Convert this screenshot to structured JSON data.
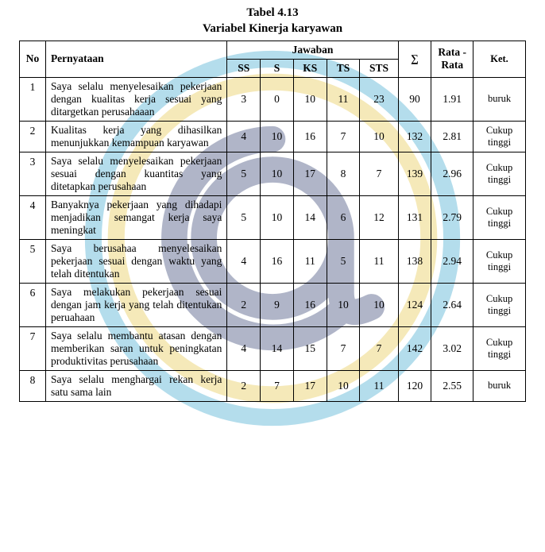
{
  "caption": {
    "line1": "Tabel 4.13",
    "line2": "Variabel Kinerja karyawan"
  },
  "headers": {
    "no": "No",
    "pernyataan": "Pernyataan",
    "jawaban": "Jawaban",
    "ss": "SS",
    "s": "S",
    "ks": "KS",
    "ts": "TS",
    "sts": "STS",
    "sum": "∑",
    "rata": "Rata - Rata",
    "ket": "Ket."
  },
  "rows": [
    {
      "no": "1",
      "pern": "Saya selalu menyelesaikan pekerjaan dengan kualitas kerja sesuai yang ditargetkan perusahaaan",
      "ss": "3",
      "s": "0",
      "ks": "10",
      "ts": "11",
      "sts": "23",
      "sum": "90",
      "rata": "1.91",
      "ket": "buruk"
    },
    {
      "no": "2",
      "pern": "Kualitas kerja yang dihasilkan menunjukkan kemampuan karyawan",
      "ss": "4",
      "s": "10",
      "ks": "16",
      "ts": "7",
      "sts": "10",
      "sum": "132",
      "rata": "2.81",
      "ket": "Cukup tinggi"
    },
    {
      "no": "3",
      "pern": "Saya selalu menyelesaikan pekerjaan sesuai dengan kuantitas yang ditetapkan perusahaan",
      "ss": "5",
      "s": "10",
      "ks": "17",
      "ts": "8",
      "sts": "7",
      "sum": "139",
      "rata": "2.96",
      "ket": "Cukup tinggi"
    },
    {
      "no": "4",
      "pern": "Banyaknya pekerjaan yang dihadapi menjadikan semangat kerja saya meningkat",
      "ss": "5",
      "s": "10",
      "ks": "14",
      "ts": "6",
      "sts": "12",
      "sum": "131",
      "rata": "2.79",
      "ket": "Cukup tinggi"
    },
    {
      "no": "5",
      "pern": "Saya berusahaa menyelesaikan pekerjaan sesuai  dengan waktu  yang telah ditentukan",
      "ss": "4",
      "s": "16",
      "ks": "11",
      "ts": "5",
      "sts": "11",
      "sum": "138",
      "rata": "2.94",
      "ket": "Cukup tinggi"
    },
    {
      "no": "6",
      "pern": "Saya melakukan pekerjaan sesuai dengan jam kerja yang telah ditentukan peruahaan",
      "ss": "2",
      "s": "9",
      "ks": "16",
      "ts": "10",
      "sts": "10",
      "sum": "124",
      "rata": "2.64",
      "ket": "Cukup tinggi"
    },
    {
      "no": "7",
      "pern": "Saya selalu membantu atasan dengan memberikan saran untuk peningkatan produktivitas perusahaan",
      "ss": "4",
      "s": "14",
      "ks": "15",
      "ts": "7",
      "sts": "7",
      "sum": "142",
      "rata": "3.02",
      "ket": "Cukup tinggi"
    },
    {
      "no": "8",
      "pern": "Saya selalu menghargai rekan kerja satu sama lain",
      "ss": "2",
      "s": "7",
      "ks": "17",
      "ts": "10",
      "sts": "11",
      "sum": "120",
      "rata": "2.55",
      "ket": "buruk"
    }
  ],
  "watermark": {
    "ring_outer": "#2aa0c9",
    "ring_mid": "#e4c33a",
    "at_color": "#1f2f64",
    "bg": "#ffffff"
  }
}
